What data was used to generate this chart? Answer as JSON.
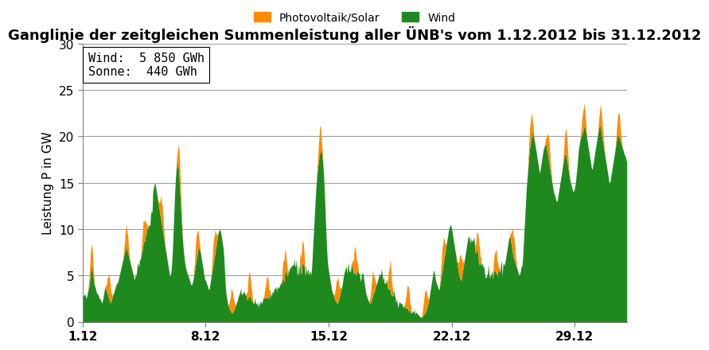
{
  "title": "Ganglinie der zeitgleichen Summenleistung aller ÜNB's vom 1.12.2012 bis 31.12.2012",
  "ylabel": "Leistung P in GW",
  "legend_solar": "Photovoltaik/Solar",
  "legend_wind": "Wind",
  "annotation_line1": "Wind:  5 850 GWh",
  "annotation_line2": "Sonne:  440 GWh",
  "color_wind": "#1e8a1e",
  "color_solar": "#ff8c00",
  "color_background": "#ffffff",
  "color_grid": "#a0a0a0",
  "ylim": [
    0,
    30
  ],
  "yticks": [
    0,
    5,
    10,
    15,
    20,
    25,
    30
  ],
  "xtick_labels": [
    "1.12",
    "8.12",
    "15.12",
    "22.12",
    "29.12"
  ],
  "xtick_positions": [
    0,
    168,
    336,
    504,
    672
  ],
  "n_points": 744,
  "title_fontsize": 13,
  "label_fontsize": 11,
  "tick_fontsize": 11
}
